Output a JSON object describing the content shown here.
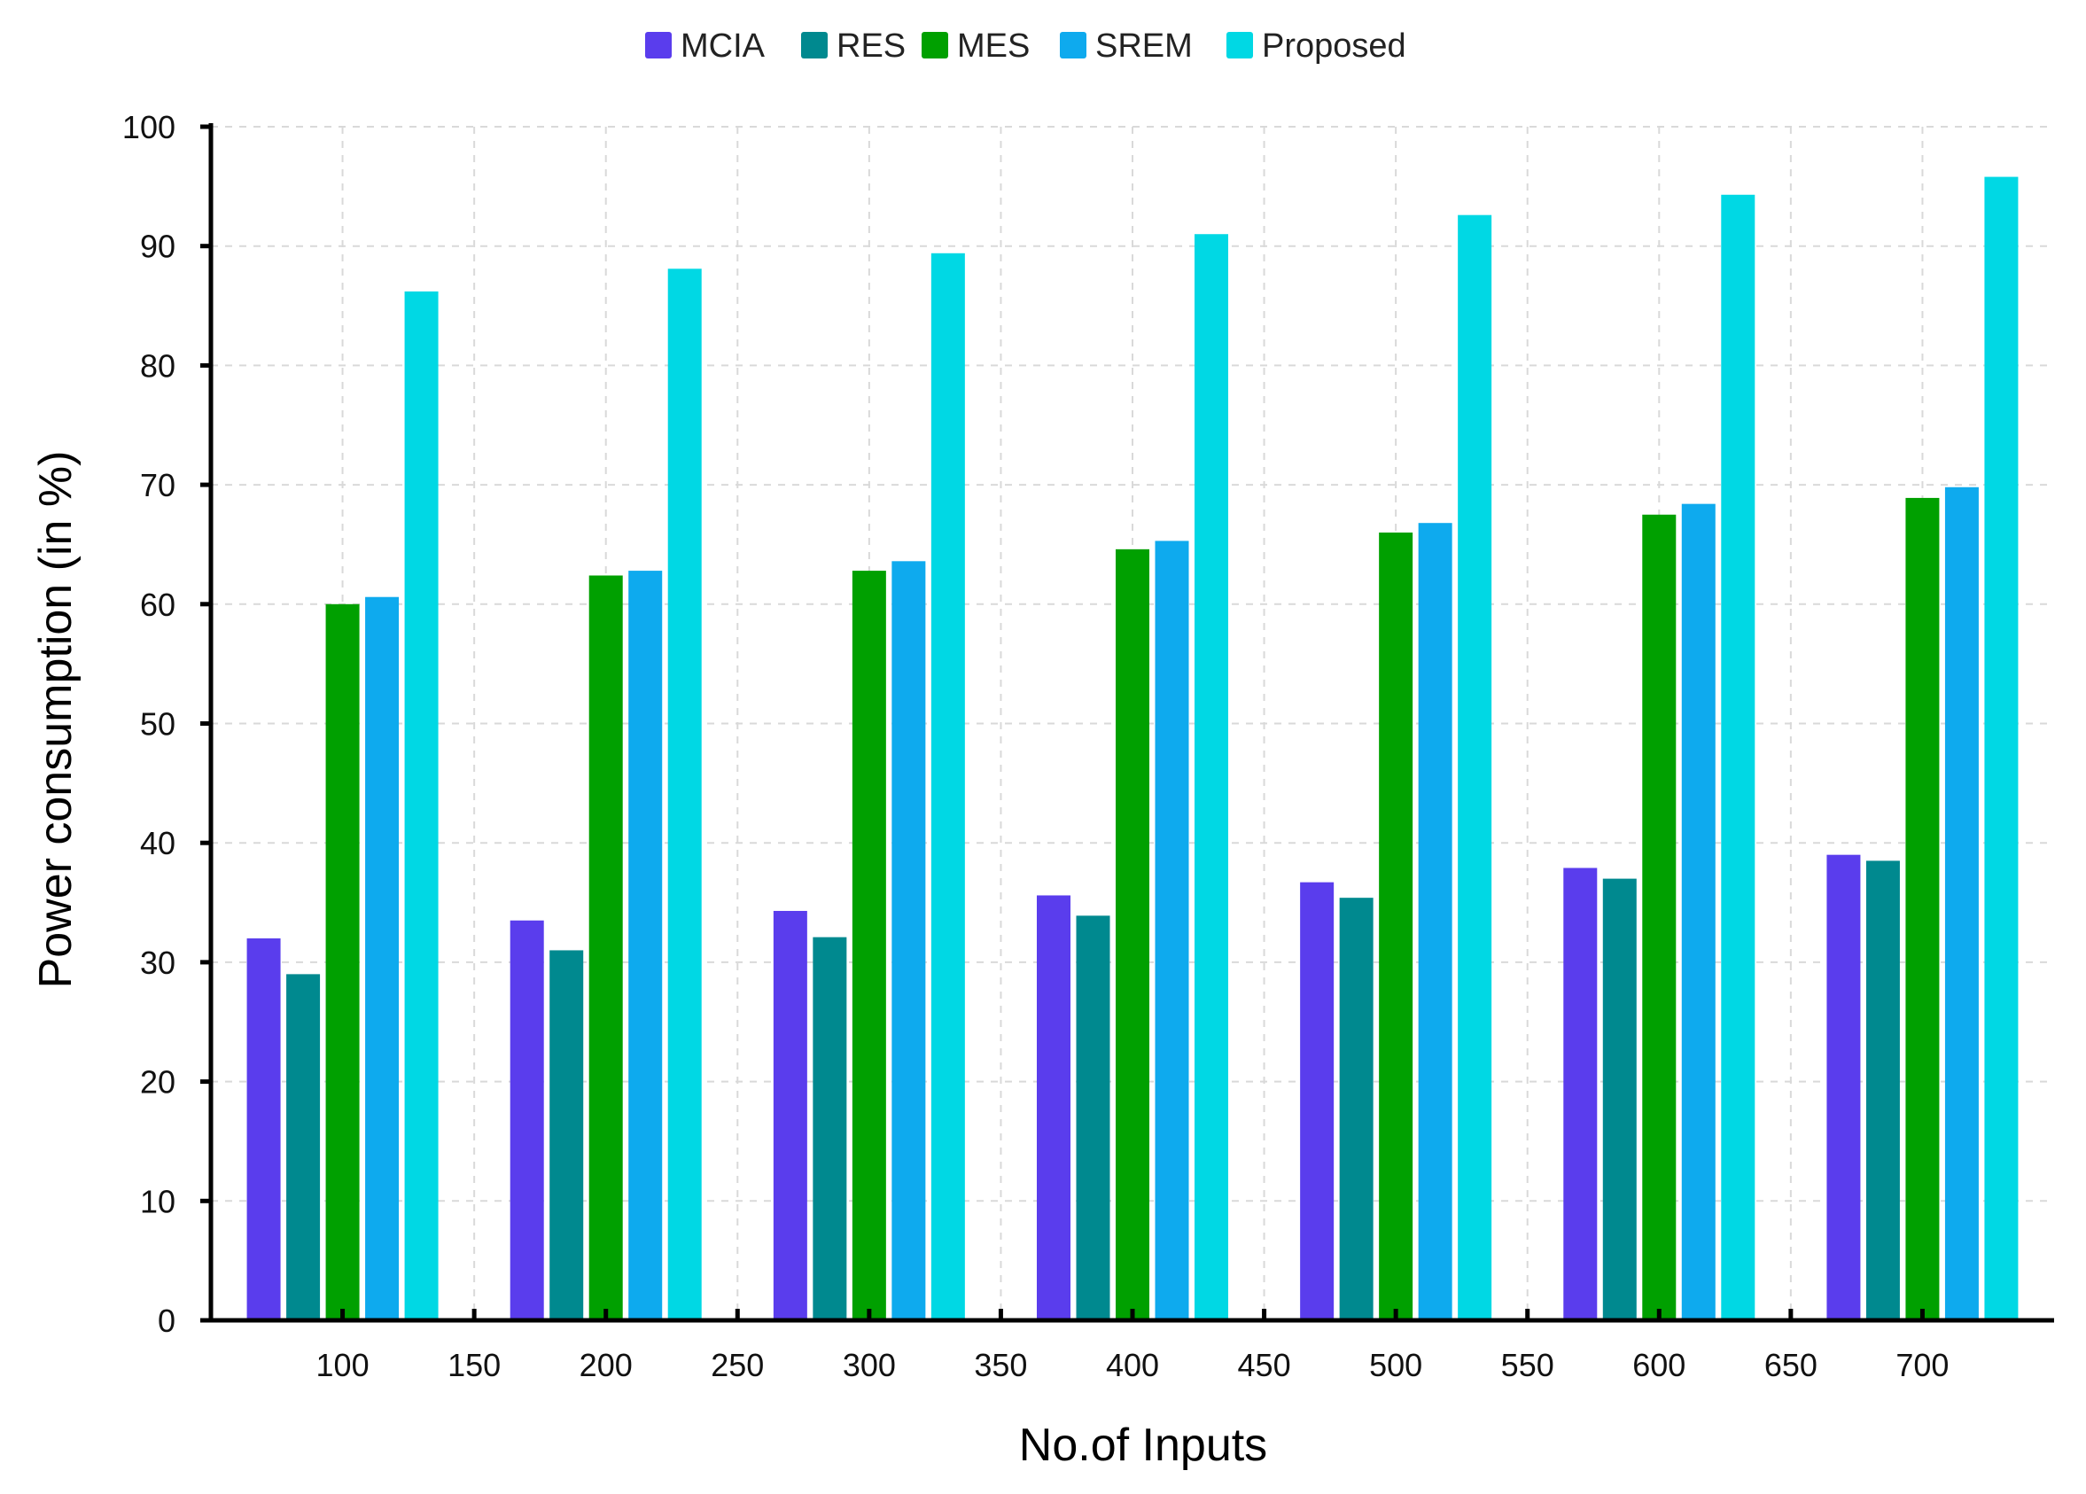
{
  "chart_data": {
    "type": "bar",
    "title": "",
    "xlabel": "No.of Inputs",
    "ylabel": "Power consumption (in %)",
    "ylim": [
      0,
      100
    ],
    "yticks": [
      "0",
      "10",
      "20",
      "30",
      "40",
      "50",
      "60",
      "70",
      "80",
      "90",
      "100"
    ],
    "xlim": [
      50,
      750
    ],
    "xticks": [
      "100",
      "150",
      "200",
      "250",
      "300",
      "350",
      "400",
      "450",
      "500",
      "550",
      "600",
      "650",
      "700"
    ],
    "categories": [
      "100",
      "200",
      "300",
      "400",
      "500",
      "600",
      "700"
    ],
    "series": [
      {
        "name": "MCIA",
        "color": "#5a3ded",
        "values": [
          32,
          33.5,
          34.3,
          35.6,
          36.7,
          37.9,
          39
        ]
      },
      {
        "name": "RES",
        "color": "#00898f",
        "values": [
          29,
          31,
          32.1,
          33.9,
          35.4,
          37,
          38.5
        ]
      },
      {
        "name": "MES",
        "color": "#00a000",
        "values": [
          60,
          62.4,
          62.8,
          64.6,
          66,
          67.5,
          68.9
        ]
      },
      {
        "name": "SREM",
        "color": "#0eaaee",
        "values": [
          60.6,
          62.8,
          63.6,
          65.3,
          66.8,
          68.4,
          69.8
        ]
      },
      {
        "name": "Proposed",
        "color": "#00d8e4",
        "values": [
          86.2,
          88.1,
          89.4,
          91,
          92.6,
          94.3,
          95.8
        ]
      }
    ],
    "legend_position": "top-center",
    "grid": true
  }
}
